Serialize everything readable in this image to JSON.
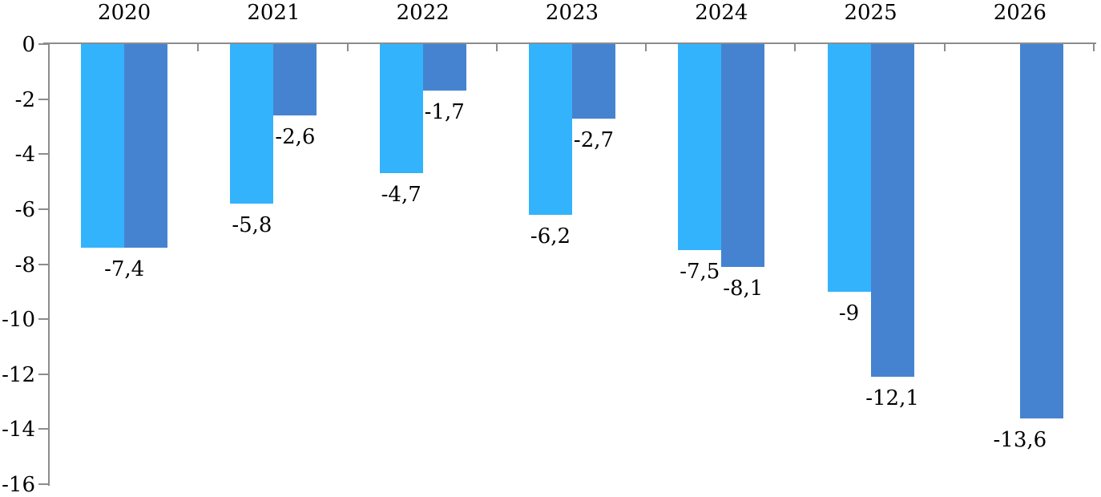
{
  "chart_data": {
    "type": "bar",
    "orientation": "vertical-negative",
    "x_axis_position": "top",
    "title": "",
    "xlabel": "",
    "ylabel": "",
    "categories": [
      "2020",
      "2021",
      "2022",
      "2023",
      "2024",
      "2025",
      "2026"
    ],
    "series": [
      {
        "name": "series_1",
        "color": "#33B3FC",
        "values": [
          -7.4,
          -5.8,
          -4.7,
          -6.2,
          -7.5,
          -9,
          null
        ],
        "data_labels": [
          "-7,4",
          "-5,8",
          "-4,7",
          "-6,2",
          "-7,5",
          "-9",
          ""
        ]
      },
      {
        "name": "series_2",
        "color": "#4583D1",
        "values": [
          -7.4,
          -2.6,
          -1.7,
          -2.7,
          -8.1,
          -12.1,
          -13.6
        ],
        "data_labels": [
          "",
          "-2,6",
          "-1,7",
          "-2,7",
          "-8,1",
          "-12,1",
          "-13,6"
        ]
      }
    ],
    "ylim": [
      -16,
      0
    ],
    "yticks": [
      0,
      -2,
      -4,
      -6,
      -8,
      -10,
      -12,
      -14,
      -16
    ],
    "ytick_labels": [
      "0",
      "-2",
      "-4",
      "-6",
      "-8",
      "-10",
      "-12",
      "-14",
      "-16"
    ],
    "grid": false,
    "legend": false,
    "axis_color": "#8C8C8C",
    "label_color": "#000000"
  }
}
